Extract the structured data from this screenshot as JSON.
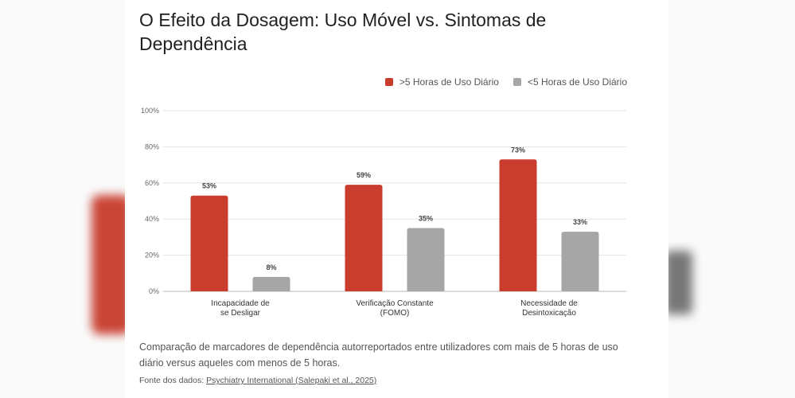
{
  "colors": {
    "series_high": "#c93c2e",
    "series_low": "#a6a6a6",
    "grid": "#e3e3e3"
  },
  "chart_data": {
    "type": "bar",
    "title": "O Efeito da Dosagem: Uso Móvel vs. Sintomas de Dependência",
    "categories": [
      [
        "Incapacidade de",
        "se Desligar"
      ],
      [
        "Verificação Constante",
        "(FOMO)"
      ],
      [
        "Necessidade de",
        "Desintoxicação"
      ]
    ],
    "series": [
      {
        "name": ">5 Horas de Uso Diário",
        "values": [
          53,
          59,
          73
        ],
        "labels": [
          "53%",
          "59%",
          "73%"
        ]
      },
      {
        "name": "<5 Horas de Uso Diário",
        "values": [
          8,
          35,
          33
        ],
        "labels": [
          "8%",
          "35%",
          "33%"
        ]
      }
    ],
    "ylim": [
      0,
      100
    ],
    "yticks": [
      "0%",
      "20%",
      "40%",
      "60%",
      "80%",
      "100%"
    ],
    "grid": true,
    "legend": "top-right"
  },
  "caption": "Comparação de marcadores de dependência autorreportados entre utilizadores com mais de 5 horas de uso diário versus aqueles com menos de 5 horas.",
  "source": {
    "prefix": "Fonte dos dados: ",
    "link": "Psychiatry International (Salepaki et al., 2025)"
  }
}
